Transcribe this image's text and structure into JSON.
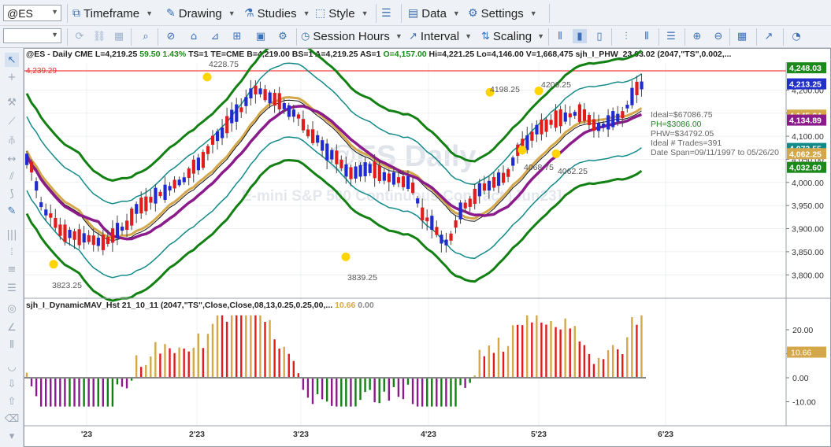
{
  "toolbar": {
    "symbol": "@ES",
    "timeframe": "Timeframe",
    "drawing": "Drawing",
    "studies": "Studies",
    "style": "Style",
    "data": "Data",
    "settings": "Settings",
    "session_hours": "Session Hours",
    "interval": "Interval",
    "scaling": "Scaling"
  },
  "header": {
    "symbol": "@ES - Daily  CME",
    "last": "L=4,219.25",
    "change": "59.50",
    "change_pct": "1.43%",
    "ts": "TS=1",
    "te": "TE=CME",
    "bid": "B=4,219.00",
    "bs": "BS=1",
    "ask": "A=4,219.25",
    "as": "AS=1",
    "open": "O=4,157.00",
    "high": "Hi=4,221.25",
    "low": "Lo=4,146.00",
    "volume": "V=1,668,475",
    "study": "sjh_I_PHW_23.03.02 (2047,\"TS\",0.002,..."
  },
  "watermark": {
    "title": "@ES Daily",
    "subtitle": "E-mini S&P 500 Continuous Contract [Jun23]"
  },
  "price_panel": {
    "ref_line_label": "4,239.29",
    "annotations": [
      "4228.75",
      "3823.25",
      "3839.25",
      "4198.25",
      "4206.25",
      "4068.75",
      "4062.25"
    ],
    "stats": [
      "Ideal=$67086.75",
      "PH=$3086.00",
      "PHW=$34792.05",
      "Ideal # Trades=391",
      "Date Span=09/11/1997 to 05/26/20"
    ],
    "axis_ticks": [
      "4,200.00",
      "4,150.00",
      "4,100.00",
      "4,050.00",
      "4,000.00",
      "3,950.00",
      "3,900.00",
      "3,850.00",
      "3,800.00"
    ],
    "price_tags": [
      {
        "text": "4,248.03",
        "color": "#1b8a1b"
      },
      {
        "text": "4,213.25",
        "color": "#2030c8"
      },
      {
        "text": "4,145.64",
        "color": "#d4a84a"
      },
      {
        "text": "4,134.89",
        "color": "#8b1a8b"
      },
      {
        "text": "4,073.55",
        "color": "#138a8a"
      },
      {
        "text": "4,062.25",
        "color": "#d4a84a"
      },
      {
        "text": "4,032.60",
        "color": "#1b8a1b"
      }
    ]
  },
  "indicator_panel": {
    "title": "sjh_I_DynamicMAV_Hst 21_10_11 (2047,\"TS\",Close,Close,08,13,0.25,0.25,00,...",
    "value_1": "10.66",
    "value_2": "0.00",
    "axis_ticks": [
      "20.00",
      "10.00",
      "0.00",
      "-10.00"
    ],
    "value_tag": "10.66"
  },
  "x_axis": {
    "labels": [
      "'23",
      "2'23",
      "3'23",
      "4'23",
      "5'23",
      "6'23"
    ]
  },
  "colors": {
    "up_candle": "#1f2bd0",
    "down_candle": "#e11c1c",
    "outer_band": "#128012",
    "inner_band": "#138a8a",
    "gold_ma": "#d4a84a",
    "purple_ma": "#8b1a8b",
    "ref_line": "#f04040",
    "marker": "#ffd400"
  }
}
